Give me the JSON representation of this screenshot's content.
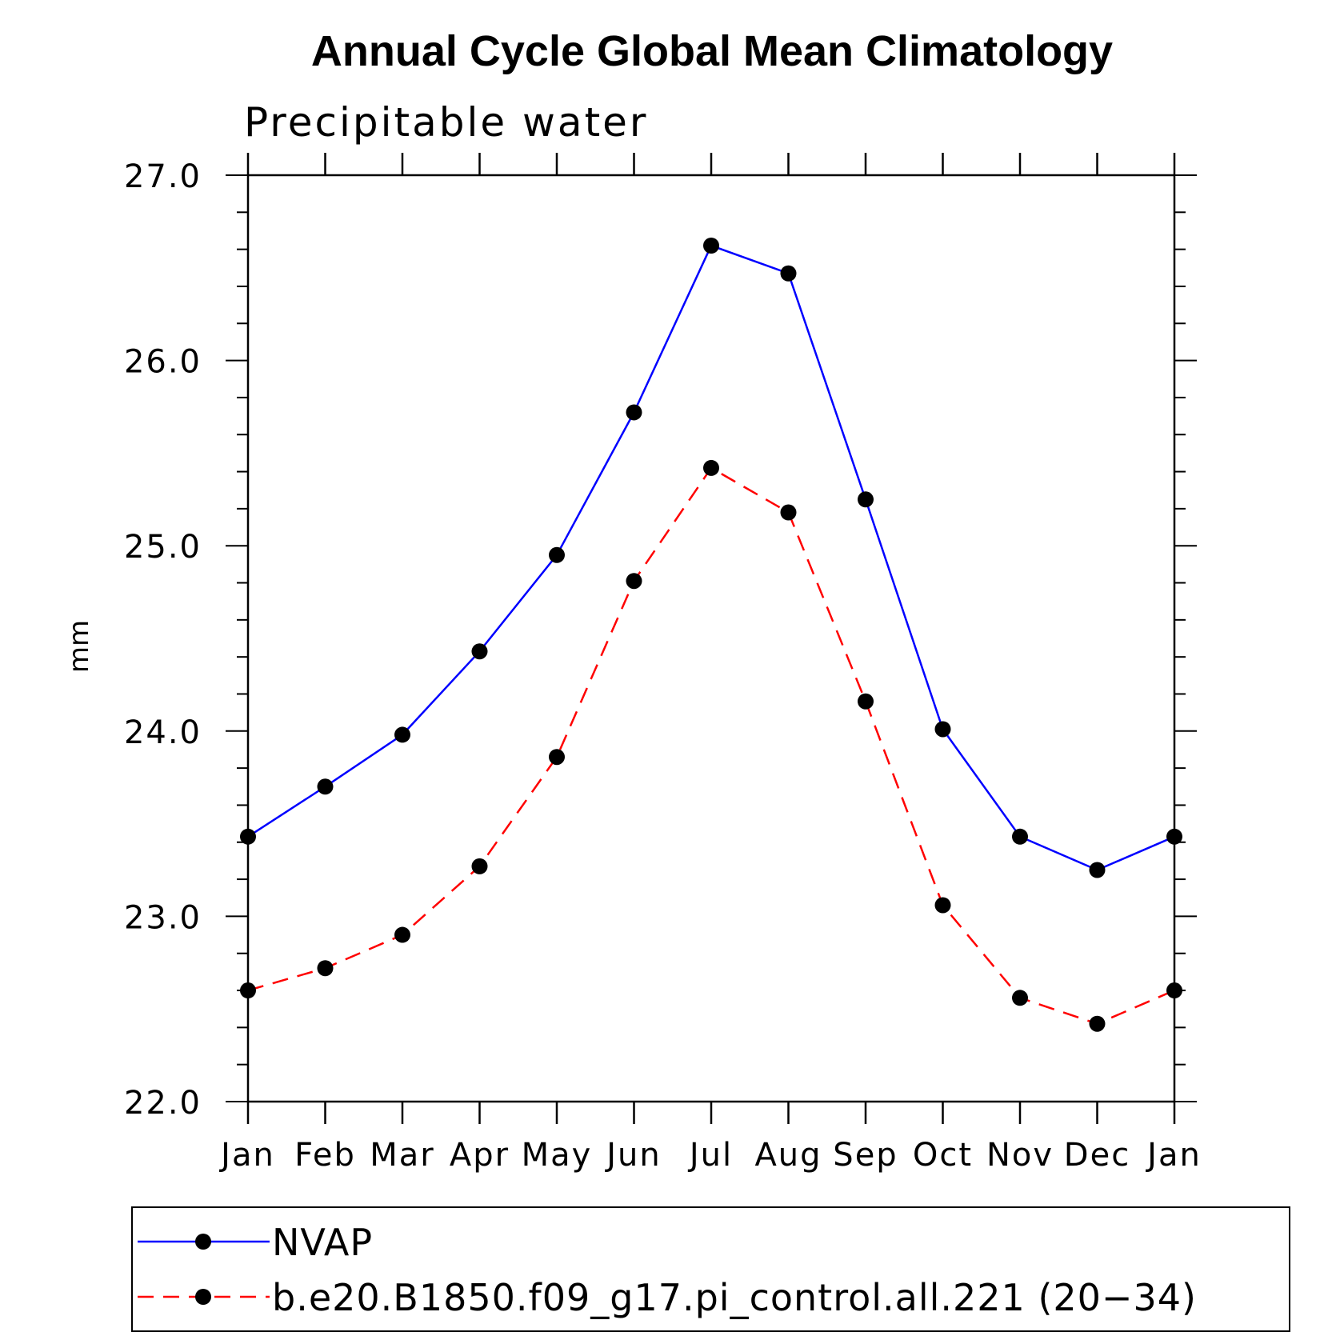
{
  "chart_data": {
    "type": "line",
    "title": "Annual Cycle Global Mean Climatology",
    "subtitle": "Precipitable water",
    "ylabel": "mm",
    "xlabel": "",
    "categories": [
      "Jan",
      "Feb",
      "Mar",
      "Apr",
      "May",
      "Jun",
      "Jul",
      "Aug",
      "Sep",
      "Oct",
      "Nov",
      "Dec",
      "Jan"
    ],
    "ylim": [
      22.0,
      27.0
    ],
    "yticks": [
      "22.0",
      "23.0",
      "24.0",
      "25.0",
      "26.0",
      "27.0"
    ],
    "grid": false,
    "legend_position": "bottom",
    "series": [
      {
        "name": "NVAP",
        "color": "#0000ff",
        "dash": "solid",
        "marker": "filled-circle",
        "values": [
          23.43,
          23.7,
          23.98,
          24.43,
          24.95,
          25.72,
          26.62,
          26.47,
          25.25,
          24.01,
          23.43,
          23.25,
          23.43
        ]
      },
      {
        "name": "b.e20.B1850.f09_g17.pi_control.all.221 (20−34)",
        "color": "#ff0000",
        "dash": "dashed",
        "marker": "filled-circle",
        "values": [
          22.6,
          22.72,
          22.9,
          23.27,
          23.86,
          24.81,
          25.42,
          25.18,
          24.16,
          23.06,
          22.56,
          22.42,
          22.6
        ]
      }
    ]
  }
}
